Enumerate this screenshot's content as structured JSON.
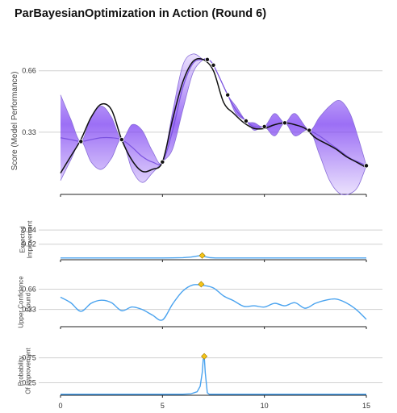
{
  "title": "ParBayesianOptimization in Action (Round 6)",
  "colors": {
    "band": "#7b3ff2",
    "band_edge": "#8a6fd8",
    "mean": "#7b52e0",
    "objective": "#111111",
    "acquisition": "#4aa3ef",
    "maxpoint": "#f5c518",
    "grid": "#d0d0d0",
    "axis": "#222222"
  },
  "chart_data": [
    {
      "type": "line",
      "name": "main",
      "ylabel": "Score (Model Performance)",
      "xlim": [
        0,
        15
      ],
      "ylim": [
        0.0,
        0.78
      ],
      "yticks": [
        0.33,
        0.66
      ],
      "ytick_labels": [
        "0.33",
        "0.66"
      ],
      "xticks": [
        0,
        5,
        10,
        15
      ],
      "grid": true,
      "objective_x": [
        0,
        0.5,
        1,
        1.5,
        2,
        2.5,
        3,
        3.5,
        4,
        4.5,
        5,
        5.5,
        6,
        6.5,
        7,
        7.5,
        8,
        8.5,
        9,
        9.5,
        10,
        10.5,
        11,
        11.5,
        12,
        12.5,
        13,
        13.5,
        14,
        14.5,
        15
      ],
      "objective_y": [
        0.11,
        0.2,
        0.29,
        0.41,
        0.48,
        0.45,
        0.29,
        0.18,
        0.12,
        0.13,
        0.17,
        0.4,
        0.6,
        0.71,
        0.72,
        0.66,
        0.49,
        0.43,
        0.38,
        0.35,
        0.35,
        0.37,
        0.38,
        0.37,
        0.35,
        0.3,
        0.27,
        0.24,
        0.2,
        0.17,
        0.14
      ],
      "sampled_points": [
        {
          "x": 1.0,
          "y": 0.28
        },
        {
          "x": 3.0,
          "y": 0.29
        },
        {
          "x": 5.0,
          "y": 0.17
        },
        {
          "x": 7.2,
          "y": 0.72
        },
        {
          "x": 7.5,
          "y": 0.69
        },
        {
          "x": 8.2,
          "y": 0.53
        },
        {
          "x": 9.1,
          "y": 0.39
        },
        {
          "x": 10.0,
          "y": 0.36
        },
        {
          "x": 11.0,
          "y": 0.38
        },
        {
          "x": 12.2,
          "y": 0.34
        },
        {
          "x": 15.0,
          "y": 0.15
        }
      ],
      "mean_x": [
        0,
        0.5,
        1,
        1.5,
        2,
        2.5,
        3,
        3.5,
        4,
        4.5,
        5,
        5.5,
        6,
        6.5,
        7,
        7.2,
        7.5,
        8.2,
        8.6,
        9.1,
        9.5,
        10,
        10.5,
        11,
        11.5,
        12.2,
        12.7,
        13.2,
        13.7,
        14.2,
        14.6,
        15
      ],
      "mean_y": [
        0.3,
        0.29,
        0.28,
        0.29,
        0.3,
        0.3,
        0.29,
        0.25,
        0.2,
        0.17,
        0.17,
        0.34,
        0.57,
        0.7,
        0.72,
        0.72,
        0.69,
        0.53,
        0.45,
        0.39,
        0.36,
        0.36,
        0.37,
        0.38,
        0.37,
        0.34,
        0.31,
        0.27,
        0.23,
        0.19,
        0.17,
        0.15
      ],
      "band_upper": [
        0.53,
        0.4,
        0.28,
        0.41,
        0.47,
        0.41,
        0.29,
        0.37,
        0.34,
        0.23,
        0.17,
        0.44,
        0.69,
        0.75,
        0.72,
        0.72,
        0.69,
        0.53,
        0.47,
        0.39,
        0.38,
        0.36,
        0.43,
        0.38,
        0.43,
        0.34,
        0.41,
        0.47,
        0.5,
        0.43,
        0.3,
        0.15
      ],
      "band_lower": [
        0.07,
        0.18,
        0.28,
        0.17,
        0.13,
        0.19,
        0.29,
        0.13,
        0.06,
        0.11,
        0.17,
        0.24,
        0.45,
        0.65,
        0.72,
        0.72,
        0.69,
        0.53,
        0.43,
        0.39,
        0.34,
        0.36,
        0.31,
        0.38,
        0.31,
        0.34,
        0.21,
        0.07,
        0.0,
        0.0,
        0.04,
        0.15
      ]
    },
    {
      "type": "line",
      "name": "expected-improvement",
      "ylabel": [
        "Expected",
        "Improvement"
      ],
      "xlim": [
        0,
        15
      ],
      "ylim": [
        -0.002,
        0.055
      ],
      "yticks": [
        0.02,
        0.04
      ],
      "ytick_labels": [
        "0.02",
        "0.04"
      ],
      "grid": true,
      "x": [
        0,
        5,
        5.5,
        6,
        6.4,
        6.7,
        6.85,
        6.95,
        7.1,
        7.3,
        7.6,
        8,
        15
      ],
      "y": [
        0.0005,
        0.0005,
        0.0006,
        0.0009,
        0.0018,
        0.0032,
        0.0038,
        0.0036,
        0.0022,
        0.001,
        0.0005,
        0.0005,
        0.0005
      ],
      "max_point": {
        "x": 6.95,
        "y": 0.004
      }
    },
    {
      "type": "line",
      "name": "upper-confidence-bound",
      "ylabel": [
        "Upper Confidence",
        "Bound"
      ],
      "xlim": [
        0,
        15
      ],
      "ylim": [
        0.05,
        0.85
      ],
      "yticks": [
        0.33,
        0.66
      ],
      "ytick_labels": [
        "0.33",
        "0.66"
      ],
      "grid": true,
      "x": [
        0,
        0.5,
        1,
        1.5,
        2,
        2.5,
        3,
        3.5,
        4,
        4.5,
        5,
        5.5,
        6,
        6.5,
        7,
        7.5,
        8,
        8.5,
        9,
        9.5,
        10,
        10.5,
        11,
        11.5,
        12,
        12.5,
        13,
        13.5,
        14,
        14.5,
        15
      ],
      "y": [
        0.53,
        0.44,
        0.3,
        0.43,
        0.48,
        0.44,
        0.31,
        0.37,
        0.33,
        0.24,
        0.16,
        0.42,
        0.63,
        0.73,
        0.72,
        0.68,
        0.55,
        0.47,
        0.38,
        0.39,
        0.37,
        0.43,
        0.39,
        0.44,
        0.35,
        0.43,
        0.48,
        0.5,
        0.44,
        0.33,
        0.17
      ],
      "max_point": {
        "x": 6.9,
        "y": 0.74
      }
    },
    {
      "type": "line",
      "name": "probability-of-improvement",
      "ylabel": [
        "Probability",
        "Of Improvement"
      ],
      "xlim": [
        0,
        15
      ],
      "ylim": [
        0.0,
        0.97
      ],
      "yticks": [
        0.25,
        0.75
      ],
      "ytick_labels": [
        "0.25",
        "0.75"
      ],
      "xticks": [
        0,
        5,
        10,
        15
      ],
      "xtick_labels": [
        "0",
        "5",
        "10",
        "15"
      ],
      "grid": true,
      "x": [
        0,
        6,
        6.4,
        6.7,
        6.85,
        6.95,
        7.0,
        7.05,
        7.1,
        7.2,
        7.3,
        15
      ],
      "y": [
        0.02,
        0.02,
        0.03,
        0.07,
        0.18,
        0.45,
        0.72,
        0.78,
        0.45,
        0.05,
        0.02,
        0.02
      ],
      "max_point": {
        "x": 7.05,
        "y": 0.78
      }
    }
  ]
}
